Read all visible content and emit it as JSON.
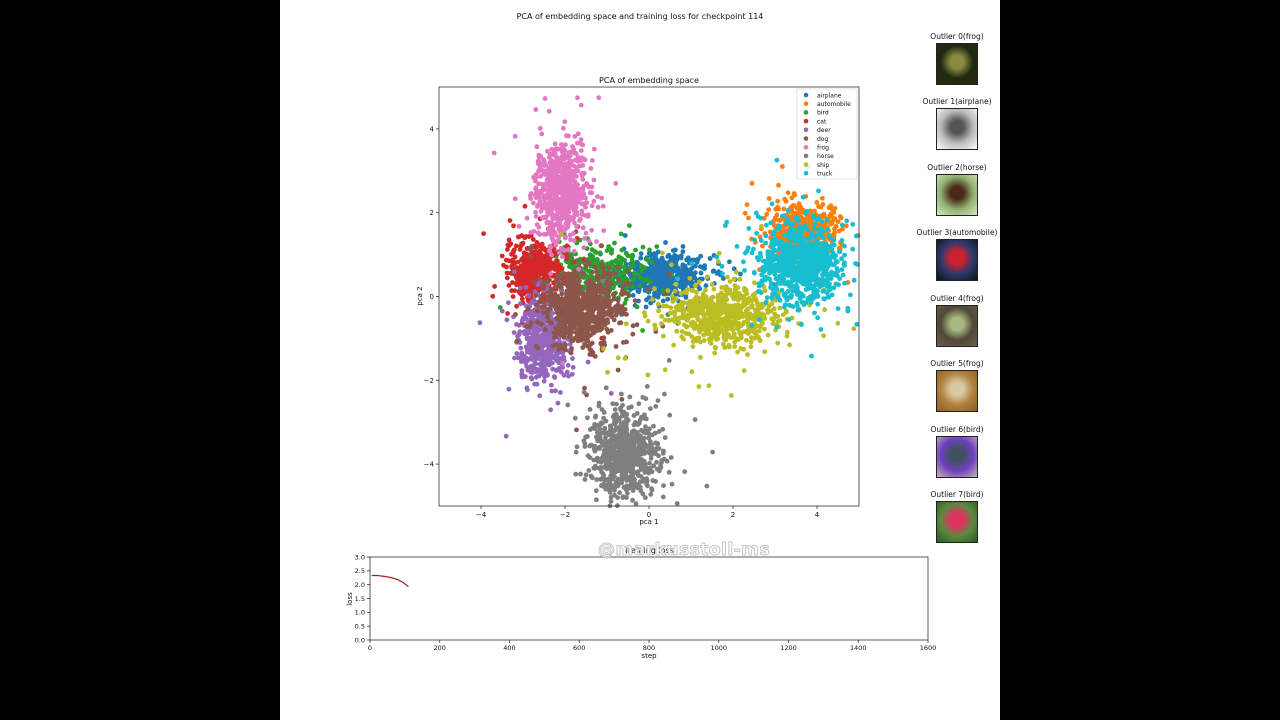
{
  "figure": {
    "suptitle": "PCA of embedding space and training loss for checkpoint 114"
  },
  "watermark": "@markusstoll-ms",
  "chart_data": [
    {
      "type": "scatter",
      "title": "PCA of embedding space",
      "xlabel": "pca 1",
      "ylabel": "pca 2",
      "xlim": [
        -5,
        5
      ],
      "ylim": [
        -5,
        5
      ],
      "xticks": [
        -4,
        -2,
        0,
        2,
        4
      ],
      "yticks": [
        -4,
        -2,
        0,
        2,
        4
      ],
      "xtick_labels": [
        "−4",
        "−2",
        "0",
        "2",
        "4"
      ],
      "ytick_labels": [
        "−4",
        "−2",
        "0",
        "2",
        "4"
      ],
      "grid": false,
      "legend_position": "upper right",
      "series": [
        {
          "name": "airplane",
          "color": "#1f77b4",
          "center": [
            0.25,
            0.5
          ],
          "spread": [
            0.55,
            0.25
          ],
          "n": 550
        },
        {
          "name": "automobile",
          "color": "#ff7f0e",
          "center": [
            3.7,
            1.6
          ],
          "spread": [
            0.4,
            0.3
          ],
          "n": 500
        },
        {
          "name": "bird",
          "color": "#2ca02c",
          "center": [
            -1.2,
            0.5
          ],
          "spread": [
            0.55,
            0.35
          ],
          "n": 350
        },
        {
          "name": "cat",
          "color": "#d62728",
          "center": [
            -2.7,
            0.6
          ],
          "spread": [
            0.3,
            0.35
          ],
          "n": 550
        },
        {
          "name": "deer",
          "color": "#9467bd",
          "center": [
            -2.5,
            -1.0
          ],
          "spread": [
            0.3,
            0.5
          ],
          "n": 550
        },
        {
          "name": "dog",
          "color": "#8c564b",
          "center": [
            -1.6,
            -0.3
          ],
          "spread": [
            0.45,
            0.45
          ],
          "n": 750
        },
        {
          "name": "frog",
          "color": "#e377c2",
          "center": [
            -2.1,
            2.5
          ],
          "spread": [
            0.3,
            0.55
          ],
          "n": 700
        },
        {
          "name": "horse",
          "color": "#7f7f7f",
          "center": [
            -0.6,
            -3.8
          ],
          "spread": [
            0.4,
            0.5
          ],
          "n": 750
        },
        {
          "name": "ship",
          "color": "#bcbd22",
          "center": [
            1.8,
            -0.45
          ],
          "spread": [
            0.65,
            0.35
          ],
          "n": 650
        },
        {
          "name": "truck",
          "color": "#17becf",
          "center": [
            3.6,
            0.8
          ],
          "spread": [
            0.5,
            0.45
          ],
          "n": 850
        }
      ]
    },
    {
      "type": "line",
      "title": "Training loss",
      "xlabel": "step",
      "ylabel": "loss",
      "xlim": [
        0,
        1600
      ],
      "ylim": [
        0.0,
        3.0
      ],
      "xticks": [
        0,
        200,
        400,
        600,
        800,
        1000,
        1200,
        1400,
        1600
      ],
      "yticks": [
        0.0,
        0.5,
        1.0,
        1.5,
        2.0,
        2.5,
        3.0
      ],
      "ytick_labels": [
        "0.0",
        "0.5",
        "1.0",
        "1.5",
        "2.0",
        "2.5",
        "3.0"
      ],
      "grid": false,
      "series": [
        {
          "name": "loss",
          "color": "#a02030",
          "x": [
            5,
            20,
            35,
            50,
            65,
            80,
            95,
            110
          ],
          "y": [
            2.33,
            2.33,
            2.31,
            2.28,
            2.24,
            2.18,
            2.08,
            1.93
          ]
        }
      ]
    }
  ],
  "outliers": [
    {
      "label": "Outlier 0(frog)",
      "colors": [
        "#2a2a10",
        "#8a8a40",
        "#1e2a10"
      ]
    },
    {
      "label": "Outlier 1(airplane)",
      "colors": [
        "#ffffff",
        "#555555",
        "#bbbbbb"
      ]
    },
    {
      "label": "Outlier 2(horse)",
      "colors": [
        "#d8e8c0",
        "#4a2a18",
        "#90b070"
      ]
    },
    {
      "label": "Outlier 3(automobile)",
      "colors": [
        "#111111",
        "#d02030",
        "#2a3a6a"
      ]
    },
    {
      "label": "Outlier 4(frog)",
      "colors": [
        "#6a6048",
        "#a8b880",
        "#504838"
      ]
    },
    {
      "label": "Outlier 5(frog)",
      "colors": [
        "#8a6020",
        "#d8c8a0",
        "#b08040"
      ]
    },
    {
      "label": "Outlier 6(bird)",
      "colors": [
        "#c8b8b0",
        "#405060",
        "#7040c0"
      ]
    },
    {
      "label": "Outlier 7(bird)",
      "colors": [
        "#2a5a20",
        "#e03060",
        "#5a8a40"
      ]
    }
  ]
}
